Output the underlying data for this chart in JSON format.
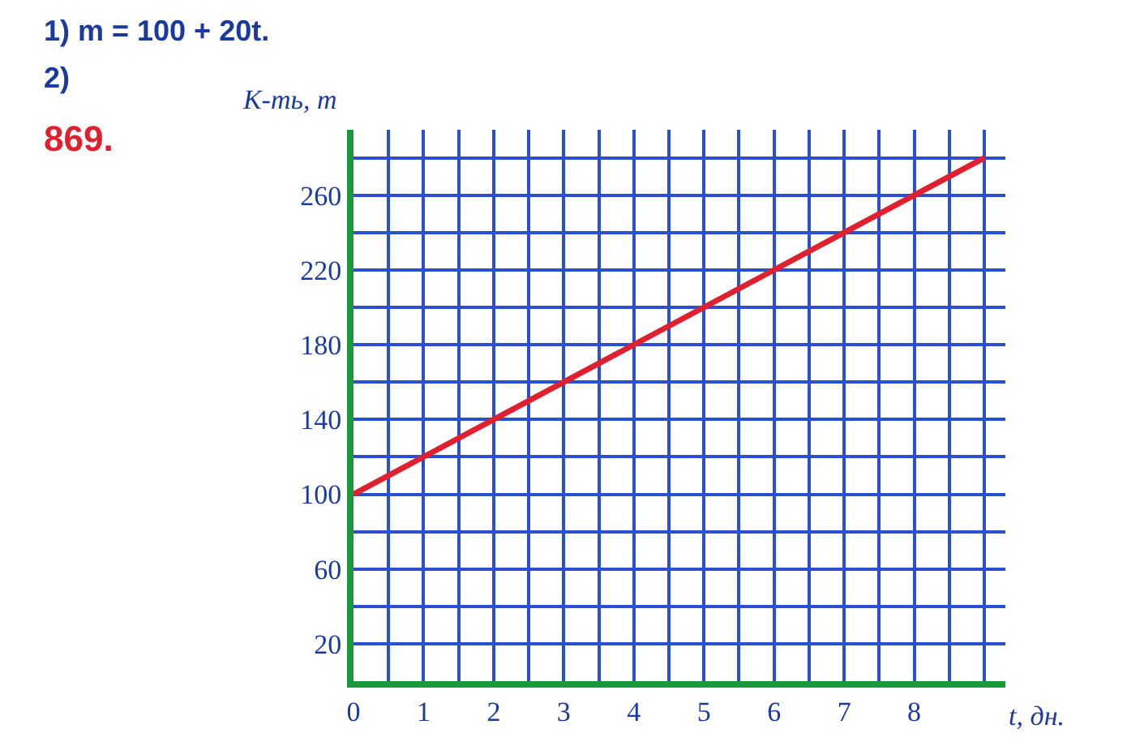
{
  "chart_data": {
    "type": "line",
    "annotations": [
      "1) m = 100 + 20t.",
      "2)",
      "869."
    ],
    "xlabel": "t, дн.",
    "ylabel": "К-ть, т",
    "x": [
      0,
      9
    ],
    "series": [
      {
        "color": "#e0202e",
        "values": [
          100,
          280
        ]
      }
    ],
    "xlim": [
      0,
      9.3
    ],
    "ylim": [
      0,
      295
    ],
    "xticks": [
      {
        "value": 0,
        "label": "0"
      },
      {
        "value": 0.5,
        "label": null
      },
      1,
      {
        "value": 1.5,
        "label": null
      },
      2,
      {
        "value": 2.5,
        "label": null
      },
      3,
      {
        "value": 3.5,
        "label": null
      },
      4,
      {
        "value": 4.5,
        "label": null
      },
      5,
      {
        "value": 5.5,
        "label": null
      },
      6,
      {
        "value": 6.5,
        "label": null
      },
      7,
      {
        "value": 7.5,
        "label": null
      },
      8,
      {
        "value": 8.5,
        "label": null
      },
      {
        "value": 9,
        "label": null
      }
    ],
    "yticks": [
      20,
      {
        "value": 40,
        "label": null
      },
      60,
      {
        "value": 80,
        "label": null
      },
      100,
      {
        "value": 120,
        "label": null
      },
      140,
      {
        "value": 160,
        "label": null
      },
      180,
      {
        "value": 200,
        "label": null
      },
      220,
      {
        "value": 240,
        "label": null
      },
      260,
      {
        "value": 280,
        "label": null
      }
    ],
    "grid": true,
    "legend": false,
    "marker": "none",
    "line_style": "solid"
  }
}
